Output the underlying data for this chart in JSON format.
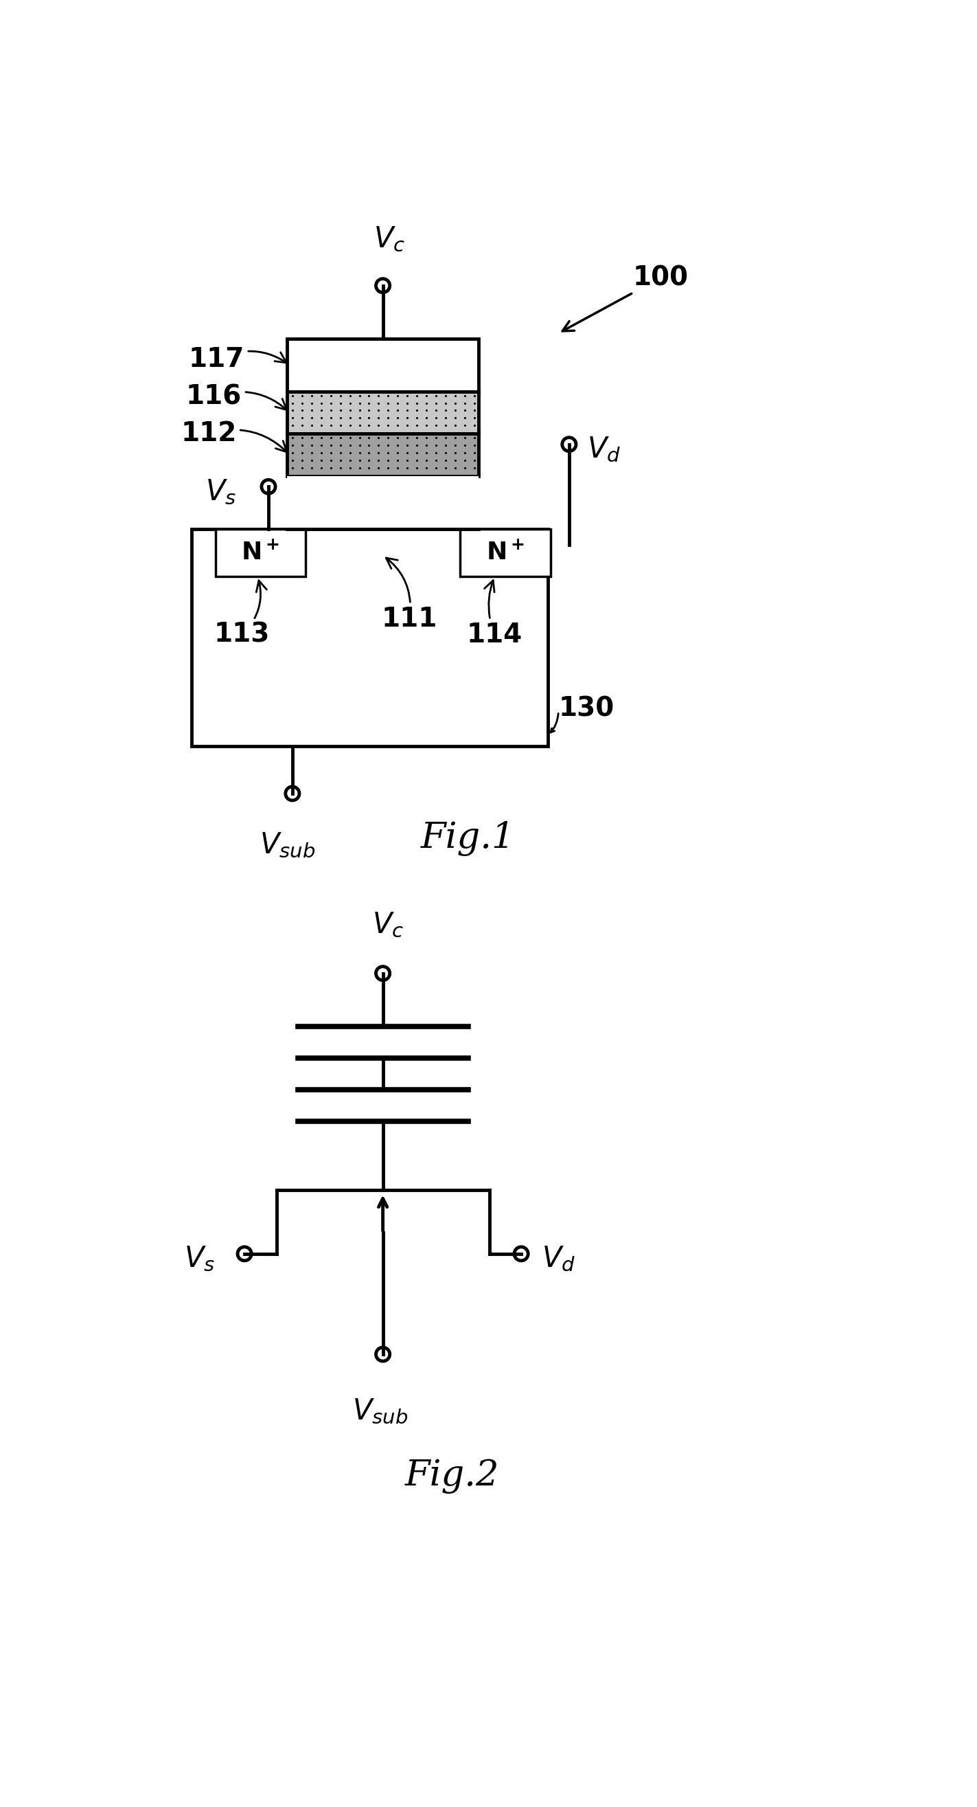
{
  "fig_width": 14.23,
  "fig_height": 26.3,
  "bg_color": "#ffffff",
  "fig1_label": "Fig.1",
  "fig2_label": "Fig.2",
  "ref_number": "100",
  "lw_main": 3.5,
  "lw_thin": 2.5,
  "circle_r": 13,
  "font_label": 30,
  "font_ref": 28,
  "font_fig": 38
}
